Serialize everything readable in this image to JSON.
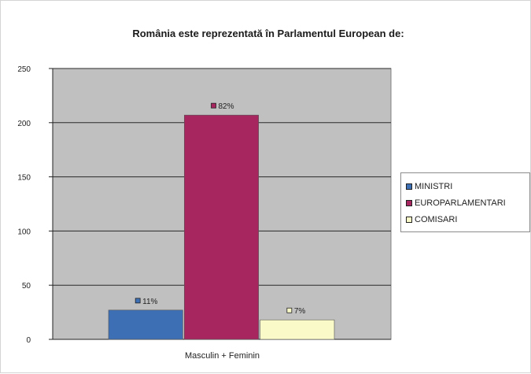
{
  "chart_data": {
    "type": "bar",
    "title": "România este reprezentată în Parlamentul European de:",
    "categories": [
      "Masculin + Feminin"
    ],
    "series": [
      {
        "name": "MINISTRI",
        "values": [
          27
        ],
        "label": "11%",
        "color": "#3d6fb4"
      },
      {
        "name": "EUROPARLAMENTARI",
        "values": [
          207
        ],
        "label": "82%",
        "color": "#a8265f"
      },
      {
        "name": "COMISARI",
        "values": [
          18
        ],
        "label": "7%",
        "color": "#fafac8"
      }
    ],
    "yticks": [
      0,
      50,
      100,
      150,
      200,
      250
    ],
    "ylim": [
      0,
      250
    ],
    "grid": true,
    "plot_background": "#c0c0c0",
    "legend_position": "right"
  }
}
